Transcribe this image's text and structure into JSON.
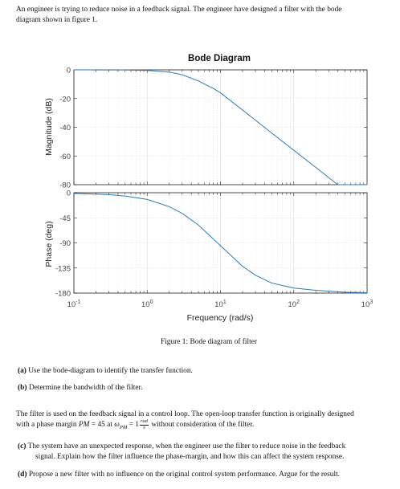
{
  "intro": {
    "line1": "An engineer is trying to reduce noise in a feedback signal. The engineer have designed a filter with the bode",
    "line2": "diagram shown in figure 1."
  },
  "chart_data": {
    "type": "line",
    "title": "Bode Diagram",
    "xlabel": "Frequency (rad/s)",
    "xscale": "log",
    "xlim": [
      0.1,
      1000
    ],
    "x_ticks": [
      {
        "base": "10",
        "exp": "-1"
      },
      {
        "base": "10",
        "exp": "0"
      },
      {
        "base": "10",
        "exp": "1"
      },
      {
        "base": "10",
        "exp": "2"
      },
      {
        "base": "10",
        "exp": "3"
      }
    ],
    "magnitude": {
      "ylabel": "Magnitude (dB)",
      "ylim": [
        -80,
        0
      ],
      "yticks": [
        "0",
        "-20",
        "-40",
        "-60",
        "-80"
      ],
      "x": [
        0.1,
        0.5,
        1,
        2,
        3,
        5,
        8,
        10,
        20,
        50,
        100,
        200,
        500,
        1000
      ],
      "y": [
        0,
        -0.1,
        -0.4,
        -1.6,
        -3.4,
        -7.7,
        -13,
        -16,
        -28,
        -44,
        -56,
        -68,
        -84,
        -96
      ]
    },
    "phase": {
      "ylabel": "Phase (deg)",
      "ylim": [
        -180,
        0
      ],
      "yticks": [
        "0",
        "-45",
        "-90",
        "-135",
        "-180"
      ],
      "x": [
        0.1,
        0.3,
        0.5,
        1,
        2,
        3,
        5,
        10,
        20,
        30,
        50,
        100,
        200,
        500,
        1000
      ],
      "y": [
        -1.2,
        -3.5,
        -6,
        -12,
        -25,
        -37,
        -58,
        -95,
        -132,
        -148,
        -162,
        -171,
        -175,
        -178.5,
        -179.3
      ]
    }
  },
  "figure": {
    "caption": "Figure 1: Bode diagram of filter"
  },
  "questions_ab": [
    {
      "label": "(a)",
      "text": "Use the bode-diagram to identify the transfer function."
    },
    {
      "label": "(b)",
      "text": "Determine the bandwidth of the filter."
    }
  ],
  "para2": {
    "line1": "The filter is used on the feedback signal in a control loop. The open-loop transfer function is originally designed",
    "line2_pre": "with a phase margin ",
    "pm_symbol": "PM",
    "eq": " = 45 at ",
    "omega": "ω",
    "omega_sub": "PM",
    "eq2": " = 1",
    "frac_num": "rad",
    "frac_den": "s",
    "line2_post": " without consideration of the filter."
  },
  "questions_cd": {
    "c": {
      "label": "(c)",
      "line1": "The system have an unexpected response, when the engineer use the filter to reduce noise in the feedback",
      "line2": "signal. Explain how the filter influence the phase-margin, and how this can affect the system response."
    },
    "d": {
      "label": "(d)",
      "text": "Propose a new filter with no influence on the original control system performance. Argue for the result."
    }
  },
  "colors": {
    "line": "#2b7bba",
    "axis": "#222222",
    "grid": "#d8d8d8",
    "tick_text": "#444444"
  }
}
